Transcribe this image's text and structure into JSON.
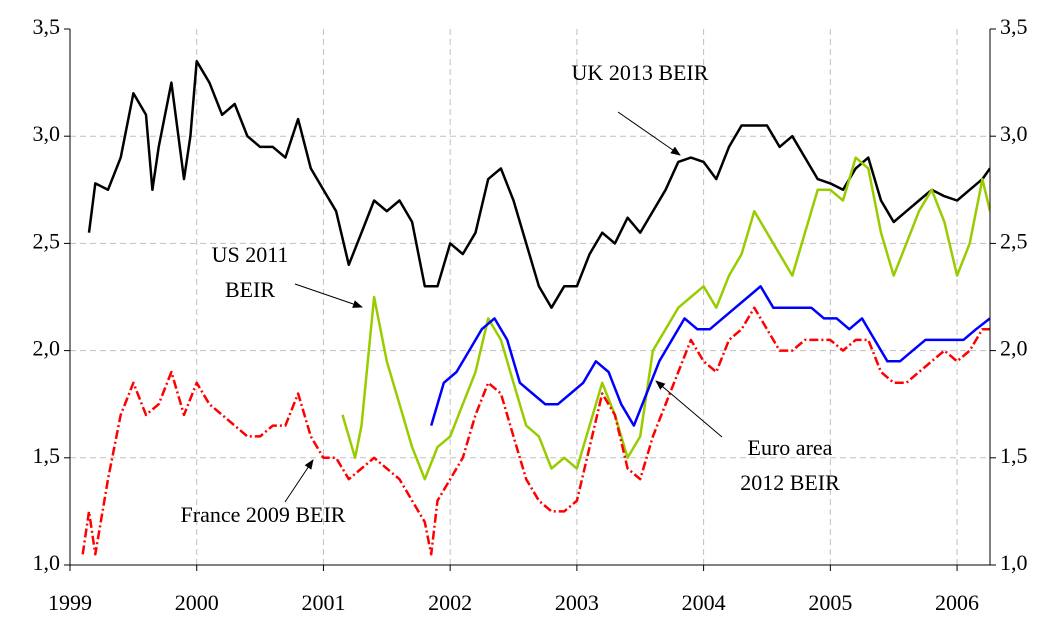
{
  "chart_data": {
    "type": "line",
    "xlim": [
      1999,
      2006.26
    ],
    "xticks": [
      1999,
      2000,
      2001,
      2002,
      2003,
      2004,
      2005,
      2006
    ],
    "ylim": [
      1.0,
      3.5
    ],
    "yticks": [
      {
        "value": 1.0,
        "label": "1,0"
      },
      {
        "value": 1.5,
        "label": "1,5"
      },
      {
        "value": 2.0,
        "label": "2,0"
      },
      {
        "value": 2.5,
        "label": "2,5"
      },
      {
        "value": 3.0,
        "label": "3,0"
      },
      {
        "value": 3.5,
        "label": "3,5"
      }
    ],
    "grid": true,
    "series": [
      {
        "color": "#000000",
        "dash": "solid",
        "x": [
          1999.15,
          1999.2,
          1999.3,
          1999.4,
          1999.5,
          1999.6,
          1999.65,
          1999.7,
          1999.8,
          1999.9,
          1999.95,
          2000.0,
          2000.1,
          2000.2,
          2000.3,
          2000.4,
          2000.5,
          2000.6,
          2000.7,
          2000.8,
          2000.9,
          2001.0,
          2001.1,
          2001.2,
          2001.3,
          2001.4,
          2001.5,
          2001.6,
          2001.7,
          2001.8,
          2001.9,
          2002.0,
          2002.1,
          2002.2,
          2002.3,
          2002.4,
          2002.5,
          2002.6,
          2002.7,
          2002.8,
          2002.9,
          2003.0,
          2003.1,
          2003.2,
          2003.3,
          2003.4,
          2003.5,
          2003.6,
          2003.7,
          2003.8,
          2003.9,
          2004.0,
          2004.1,
          2004.2,
          2004.3,
          2004.4,
          2004.5,
          2004.6,
          2004.7,
          2004.8,
          2004.9,
          2005.0,
          2005.1,
          2005.2,
          2005.3,
          2005.4,
          2005.5,
          2005.6,
          2005.7,
          2005.8,
          2005.9,
          2006.0,
          2006.1,
          2006.2,
          2006.26
        ],
        "values": [
          2.55,
          2.78,
          2.75,
          2.9,
          3.2,
          3.1,
          2.75,
          2.95,
          3.25,
          2.8,
          3.0,
          3.35,
          3.25,
          3.1,
          3.15,
          3.0,
          2.95,
          2.95,
          2.9,
          3.08,
          2.85,
          2.75,
          2.65,
          2.4,
          2.55,
          2.7,
          2.65,
          2.7,
          2.6,
          2.3,
          2.3,
          2.5,
          2.45,
          2.55,
          2.8,
          2.85,
          2.7,
          2.5,
          2.3,
          2.2,
          2.3,
          2.3,
          2.45,
          2.55,
          2.5,
          2.62,
          2.55,
          2.65,
          2.75,
          2.88,
          2.9,
          2.88,
          2.8,
          2.95,
          3.05,
          3.05,
          3.05,
          2.95,
          3.0,
          2.9,
          2.8,
          2.78,
          2.75,
          2.85,
          2.9,
          2.7,
          2.6,
          2.65,
          2.7,
          2.75,
          2.72,
          2.7,
          2.75,
          2.8,
          2.85
        ]
      },
      {
        "color": "#99cc00",
        "dash": "solid",
        "x": [
          2001.15,
          2001.25,
          2001.3,
          2001.4,
          2001.5,
          2001.6,
          2001.7,
          2001.8,
          2001.9,
          2002.0,
          2002.1,
          2002.2,
          2002.3,
          2002.4,
          2002.5,
          2002.6,
          2002.7,
          2002.8,
          2002.9,
          2003.0,
          2003.1,
          2003.2,
          2003.3,
          2003.4,
          2003.5,
          2003.6,
          2003.7,
          2003.8,
          2003.9,
          2004.0,
          2004.1,
          2004.2,
          2004.3,
          2004.4,
          2004.5,
          2004.6,
          2004.7,
          2004.8,
          2004.9,
          2005.0,
          2005.1,
          2005.2,
          2005.3,
          2005.4,
          2005.5,
          2005.6,
          2005.7,
          2005.8,
          2005.9,
          2006.0,
          2006.1,
          2006.2,
          2006.26
        ],
        "values": [
          1.7,
          1.5,
          1.65,
          2.25,
          1.95,
          1.75,
          1.55,
          1.4,
          1.55,
          1.6,
          1.75,
          1.9,
          2.15,
          2.05,
          1.85,
          1.65,
          1.6,
          1.45,
          1.5,
          1.45,
          1.65,
          1.85,
          1.7,
          1.5,
          1.6,
          2.0,
          2.1,
          2.2,
          2.25,
          2.3,
          2.2,
          2.35,
          2.45,
          2.65,
          2.55,
          2.45,
          2.35,
          2.55,
          2.75,
          2.75,
          2.7,
          2.9,
          2.85,
          2.55,
          2.35,
          2.5,
          2.65,
          2.75,
          2.6,
          2.35,
          2.5,
          2.8,
          2.65
        ]
      },
      {
        "color": "#0000ff",
        "dash": "solid",
        "x": [
          2001.85,
          2001.95,
          2002.05,
          2002.15,
          2002.25,
          2002.35,
          2002.45,
          2002.55,
          2002.65,
          2002.75,
          2002.85,
          2002.95,
          2003.05,
          2003.15,
          2003.25,
          2003.35,
          2003.45,
          2003.55,
          2003.65,
          2003.75,
          2003.85,
          2003.95,
          2004.05,
          2004.15,
          2004.25,
          2004.35,
          2004.45,
          2004.55,
          2004.65,
          2004.75,
          2004.85,
          2004.95,
          2005.05,
          2005.15,
          2005.25,
          2005.35,
          2005.45,
          2005.55,
          2005.65,
          2005.75,
          2005.85,
          2005.95,
          2006.05,
          2006.15,
          2006.26
        ],
        "values": [
          1.65,
          1.85,
          1.9,
          2.0,
          2.1,
          2.15,
          2.05,
          1.85,
          1.8,
          1.75,
          1.75,
          1.8,
          1.85,
          1.95,
          1.9,
          1.75,
          1.65,
          1.8,
          1.95,
          2.05,
          2.15,
          2.1,
          2.1,
          2.15,
          2.2,
          2.25,
          2.3,
          2.2,
          2.2,
          2.2,
          2.2,
          2.15,
          2.15,
          2.1,
          2.15,
          2.05,
          1.95,
          1.95,
          2.0,
          2.05,
          2.05,
          2.05,
          2.05,
          2.1,
          2.15
        ]
      },
      {
        "color": "#ff0000",
        "dash": "dashdot",
        "x": [
          1999.1,
          1999.15,
          1999.2,
          1999.3,
          1999.4,
          1999.5,
          1999.6,
          1999.7,
          1999.8,
          1999.9,
          2000.0,
          2000.1,
          2000.2,
          2000.3,
          2000.4,
          2000.5,
          2000.6,
          2000.7,
          2000.8,
          2000.9,
          2001.0,
          2001.1,
          2001.2,
          2001.3,
          2001.4,
          2001.5,
          2001.6,
          2001.7,
          2001.8,
          2001.85,
          2001.9,
          2002.0,
          2002.1,
          2002.2,
          2002.3,
          2002.4,
          2002.5,
          2002.6,
          2002.7,
          2002.8,
          2002.9,
          2003.0,
          2003.1,
          2003.2,
          2003.3,
          2003.4,
          2003.5,
          2003.6,
          2003.7,
          2003.8,
          2003.9,
          2004.0,
          2004.1,
          2004.2,
          2004.3,
          2004.4,
          2004.5,
          2004.6,
          2004.7,
          2004.8,
          2004.9,
          2005.0,
          2005.1,
          2005.2,
          2005.3,
          2005.4,
          2005.5,
          2005.6,
          2005.7,
          2005.8,
          2005.9,
          2006.0,
          2006.1,
          2006.2,
          2006.26
        ],
        "values": [
          1.05,
          1.25,
          1.05,
          1.4,
          1.7,
          1.85,
          1.7,
          1.75,
          1.9,
          1.7,
          1.85,
          1.75,
          1.7,
          1.65,
          1.6,
          1.6,
          1.65,
          1.65,
          1.8,
          1.6,
          1.5,
          1.5,
          1.4,
          1.45,
          1.5,
          1.45,
          1.4,
          1.3,
          1.2,
          1.05,
          1.3,
          1.4,
          1.5,
          1.7,
          1.85,
          1.8,
          1.6,
          1.4,
          1.3,
          1.25,
          1.25,
          1.3,
          1.55,
          1.8,
          1.7,
          1.45,
          1.4,
          1.6,
          1.75,
          1.9,
          2.05,
          1.95,
          1.9,
          2.05,
          2.1,
          2.2,
          2.1,
          2.0,
          2.0,
          2.05,
          2.05,
          2.05,
          2.0,
          2.05,
          2.05,
          1.9,
          1.85,
          1.85,
          1.9,
          1.95,
          2.0,
          1.95,
          2.0,
          2.1,
          2.1
        ]
      }
    ],
    "annotations": [
      {
        "lines": [
          "UK 2013 BEIR"
        ]
      },
      {
        "lines": [
          "US 2011",
          "BEIR"
        ]
      },
      {
        "lines": [
          "Euro area",
          "2012 BEIR"
        ]
      },
      {
        "lines": [
          "France 2009 BEIR"
        ]
      }
    ]
  }
}
